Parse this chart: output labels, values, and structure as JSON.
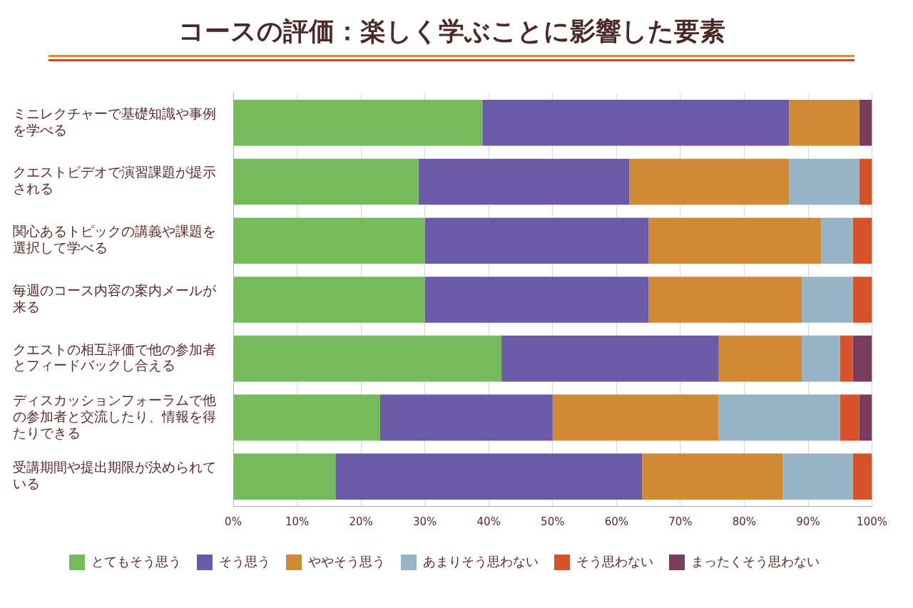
{
  "chart_data": {
    "type": "bar",
    "title": "コースの評価：楽しく学ぶことに影響した要素",
    "orientation": "horizontal",
    "stacked": true,
    "categories": [
      "ミニレクチャーで基礎知識や事例を学べる",
      "クエストビデオで演習課題が提示される",
      "関心あるトピックの講義や課題を選択して学べる",
      "毎週のコース内容の案内メールが来る",
      "クエストの相互評価で他の参加者とフィードバックし合える",
      "ディスカッションフォーラムで他の参加者と交流したり、情報を得たりできる",
      "受講期間や提出期限が決められている"
    ],
    "series": [
      {
        "name": "とてもそう思う",
        "color": "#74bb5e",
        "values": [
          39,
          29,
          30,
          30,
          42,
          23,
          16
        ]
      },
      {
        "name": "そう思う",
        "color": "#6a5aa8",
        "values": [
          48,
          33,
          35,
          35,
          34,
          27,
          48
        ]
      },
      {
        "name": "ややそう思う",
        "color": "#d08a35",
        "values": [
          11,
          25,
          27,
          24,
          13,
          26,
          22
        ]
      },
      {
        "name": "あまりそう思わない",
        "color": "#97b3c6",
        "values": [
          0,
          11,
          5,
          8,
          6,
          19,
          11
        ]
      },
      {
        "name": "そう思わない",
        "color": "#d6522a",
        "values": [
          0,
          2,
          3,
          3,
          2,
          3,
          3
        ]
      },
      {
        "name": "まったくそう思わない",
        "color": "#7b3d5e",
        "values": [
          2,
          0,
          0,
          0,
          3,
          2,
          0
        ]
      }
    ],
    "xlim": [
      0,
      100
    ],
    "xticks": [
      {
        "value": 0,
        "label": "0%"
      },
      {
        "value": 10,
        "label": "10%"
      },
      {
        "value": 20,
        "label": "20%"
      },
      {
        "value": 30,
        "label": "30%"
      },
      {
        "value": 40,
        "label": "40%"
      },
      {
        "value": 50,
        "label": "50%"
      },
      {
        "value": 60,
        "label": "60%"
      },
      {
        "value": 70,
        "label": "70%"
      },
      {
        "value": 80,
        "label": "80%"
      },
      {
        "value": 90,
        "label": "90%"
      },
      {
        "value": 100,
        "label": "100%"
      }
    ],
    "grid": "x",
    "legend": "bottom"
  }
}
